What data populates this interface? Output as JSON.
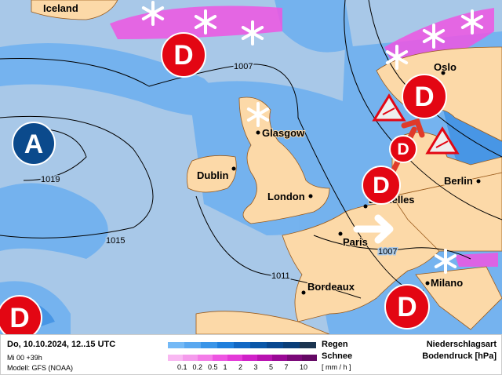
{
  "map": {
    "colors": {
      "sea": "#a8c8e8",
      "land": "#fcd9a8",
      "rain_light": "#6fb0ef",
      "rain_mid": "#3d8fe2",
      "low": "#e30613",
      "high": "#0b4a8c"
    },
    "regions": [
      "Iceland"
    ],
    "cities": [
      "Glasgow",
      "Dublin",
      "London",
      "Bruxelles",
      "Paris",
      "Berlin",
      "Oslo",
      "Milano",
      "Bordeaux"
    ],
    "isobars": [
      "1007",
      "1019",
      "1015",
      "1011",
      "1007"
    ],
    "low_symbol": "D",
    "high_symbol": "A",
    "icons": [
      "snowflake-icon",
      "storm-warning-icon",
      "movement-arrow-icon"
    ]
  },
  "legend": {
    "datetime": "Do, 10.10.2024, 12..15 UTC",
    "run": "Mi 00 +39h",
    "model": "Modell: GFS (NOAA)",
    "rain_label": "Regen",
    "snow_label": "Schnee",
    "unit": "[ mm / h ]",
    "ticks": [
      "0.1",
      "0.2",
      "0.5",
      "1",
      "2",
      "3",
      "5",
      "7",
      "10"
    ],
    "rain_colors": [
      "#74b9f6",
      "#5aa8f0",
      "#3a95e8",
      "#1f7fdc",
      "#1268c4",
      "#0a57a8",
      "#084890",
      "#0a3e78",
      "#1c3550"
    ],
    "snow_colors": [
      "#f9b8f2",
      "#f59bec",
      "#f47ce8",
      "#ee55e2",
      "#e43ad8",
      "#d020c8",
      "#b812b0",
      "#9a0896",
      "#7a0878",
      "#640864"
    ],
    "title1": "Niederschlagsart",
    "title2": "Bodendruck [hPa]"
  }
}
